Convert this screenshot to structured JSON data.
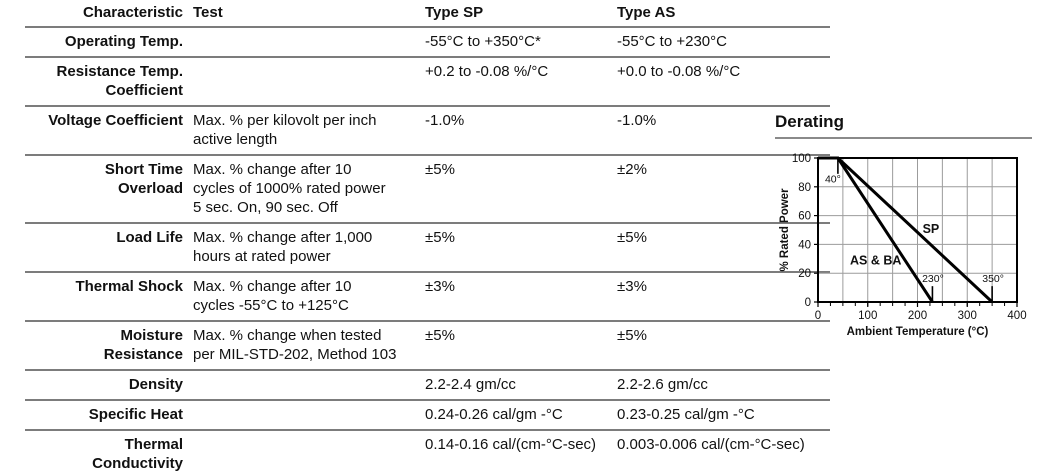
{
  "colors": {
    "text": "#111111",
    "rule": "#7c7c7c",
    "grid": "#9c9c9c",
    "line": "#000000"
  },
  "table": {
    "columns": {
      "characteristic": "Characteristic",
      "test": "Test",
      "type_sp": "Type SP",
      "type_as": "Type AS"
    },
    "rows": [
      {
        "characteristic": "Operating Temp.",
        "test": "",
        "sp": "-55°C to +350°C*",
        "as": "-55°C to +230°C"
      },
      {
        "characteristic": "Resistance Temp.\nCoefficient",
        "test": "",
        "sp": "+0.2 to -0.08 %/°C",
        "as": "+0.0 to -0.08 %/°C"
      },
      {
        "characteristic": "Voltage Coefficient",
        "test": "Max. % per kilovolt per inch\nactive length",
        "sp": "-1.0%",
        "as": "-1.0%"
      },
      {
        "characteristic": "Short Time\nOverload",
        "test": "Max. % change after 10\ncycles of 1000% rated power\n5 sec. On, 90 sec. Off",
        "sp": "±5%",
        "as": "±2%"
      },
      {
        "characteristic": "Load Life",
        "test": "Max. % change after 1,000\nhours at rated power",
        "sp": "±5%",
        "as": "±5%"
      },
      {
        "characteristic": "Thermal Shock",
        "test": "Max. % change after 10\ncycles -55°C to +125°C",
        "sp": "±3%",
        "as": "±3%"
      },
      {
        "characteristic": "Moisture\nResistance",
        "test": "Max. % change when tested\nper MIL-STD-202, Method 103",
        "sp": "±5%",
        "as": "±5%"
      },
      {
        "characteristic": "Density",
        "test": "",
        "sp": "2.2-2.4 gm/cc",
        "as": "2.2-2.6 gm/cc"
      },
      {
        "characteristic": "Specific Heat",
        "test": "",
        "sp": "0.24-0.26 cal/gm -°C",
        "as": "0.23-0.25 cal/gm -°C"
      },
      {
        "characteristic": "Thermal\nConductivity",
        "test": "",
        "sp": "0.14-0.16 cal/(cm-°C-sec)",
        "as": "0.003-0.006 cal/(cm-°C-sec)"
      }
    ]
  },
  "chart_data": {
    "type": "line",
    "title": "Derating",
    "xlabel": "Ambient Temperature (°C)",
    "ylabel": "% Rated Power",
    "xlim": [
      0,
      400
    ],
    "ylim": [
      0,
      100
    ],
    "xticks": [
      0,
      100,
      200,
      300,
      400
    ],
    "yticks": [
      0,
      20,
      40,
      60,
      80,
      100
    ],
    "x_minor_step": 25,
    "grid": {
      "x_step": 50,
      "y_step": 20,
      "on": true
    },
    "series": [
      {
        "name": "SP",
        "points": [
          [
            0,
            100
          ],
          [
            40,
            100
          ],
          [
            350,
            0
          ]
        ]
      },
      {
        "name": "AS & BA",
        "points": [
          [
            0,
            100
          ],
          [
            40,
            100
          ],
          [
            230,
            0
          ]
        ]
      }
    ],
    "annotations": [
      {
        "text": "40°",
        "x": 30,
        "y": 83,
        "bold": false
      },
      {
        "text": "SP",
        "x": 227,
        "y": 48,
        "bold": true
      },
      {
        "text": "AS & BA",
        "x": 116,
        "y": 26,
        "bold": true
      },
      {
        "text": "230°",
        "x": 231,
        "y": 14,
        "bold": false
      },
      {
        "text": "350°",
        "x": 352,
        "y": 14,
        "bold": false
      }
    ],
    "annotation_lines": [
      {
        "x1": 40,
        "y1": 100,
        "x2": 40,
        "y2": 89
      },
      {
        "x1": 230,
        "y1": 11,
        "x2": 230,
        "y2": 0
      },
      {
        "x1": 350,
        "y1": 11,
        "x2": 350,
        "y2": 0
      }
    ]
  }
}
